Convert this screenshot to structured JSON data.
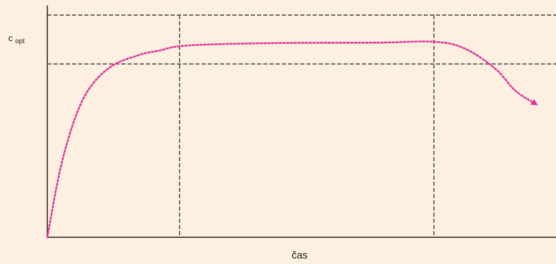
{
  "chart_data": {
    "type": "line",
    "title": "",
    "xlabel": "čas",
    "ylabel": "",
    "y_level_label_main": "c",
    "y_level_label_sub": "opt",
    "xlim": [
      0,
      100
    ],
    "ylim": [
      0,
      100
    ],
    "grid": false,
    "horizontal_guides": [
      100,
      78
    ],
    "vertical_guides": [
      26,
      76
    ],
    "series": [
      {
        "x": [
          0,
          3,
          7,
          12,
          18,
          22,
          26,
          35,
          50,
          65,
          76,
          82,
          88,
          92,
          96
        ],
        "values": [
          0,
          35,
          62,
          76,
          82,
          84,
          86,
          87,
          87.5,
          87.6,
          88,
          85,
          76,
          66,
          60
        ]
      }
    ],
    "colors": {
      "background": "#fdf0e1",
      "axis": "#1a1a1a",
      "curve": "#e0329a"
    }
  }
}
